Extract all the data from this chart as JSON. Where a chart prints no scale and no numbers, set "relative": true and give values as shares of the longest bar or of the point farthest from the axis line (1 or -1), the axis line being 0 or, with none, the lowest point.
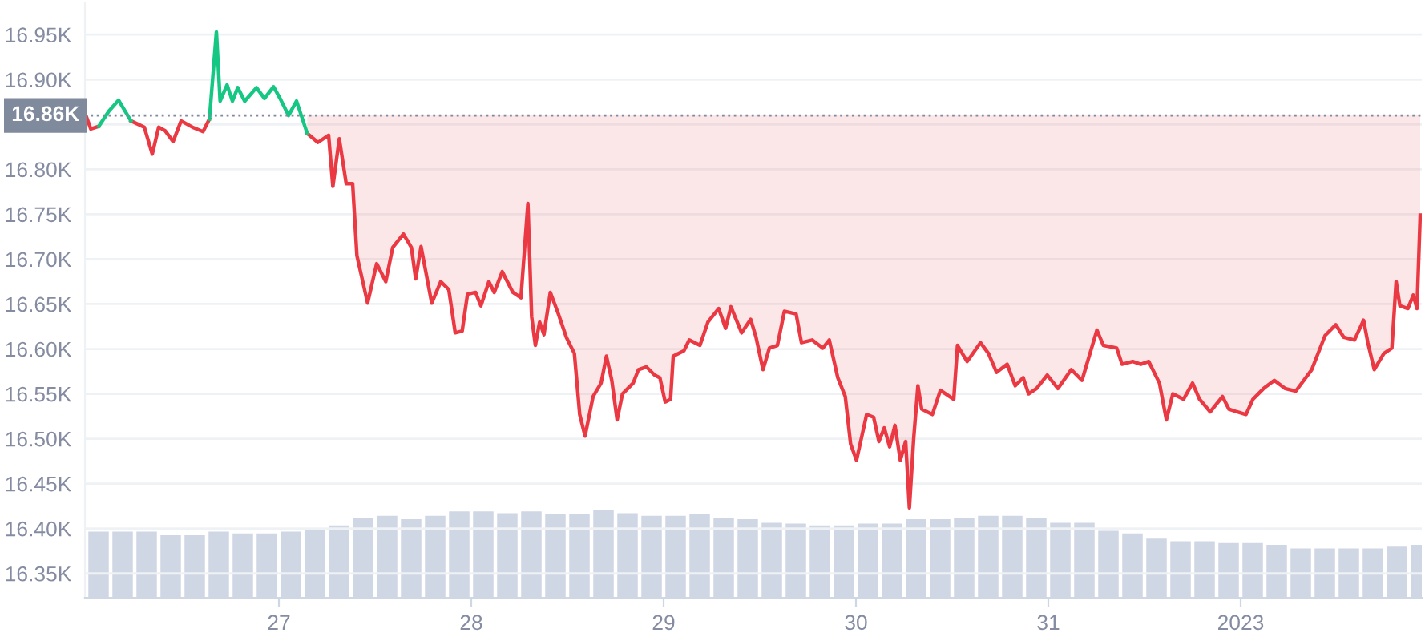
{
  "chart_data": [
    {
      "type": "line",
      "x": [
        "2022-12-26T00:00",
        "2022-12-26T00:32",
        "2022-12-26T01:32",
        "2022-12-26T02:48",
        "2022-12-26T04:00",
        "2022-12-26T04:52",
        "2022-12-26T05:32",
        "2022-12-26T07:12",
        "2022-12-26T08:12",
        "2022-12-26T09:00",
        "2022-12-26T09:48",
        "2022-12-26T10:48",
        "2022-12-26T11:48",
        "2022-12-26T13:12",
        "2022-12-26T14:32",
        "2022-12-26T15:20",
        "2022-12-26T16:12",
        "2022-12-26T16:40",
        "2022-12-26T17:32",
        "2022-12-26T18:12",
        "2022-12-26T18:52",
        "2022-12-26T19:44",
        "2022-12-26T21:12",
        "2022-12-26T22:12",
        "2022-12-26T23:20",
        "2022-12-27T00:12",
        "2022-12-27T01:12",
        "2022-12-27T02:12",
        "2022-12-27T03:32",
        "2022-12-27T04:52",
        "2022-12-27T06:12",
        "2022-12-27T06:44",
        "2022-12-27T07:32",
        "2022-12-27T08:24",
        "2022-12-27T09:12",
        "2022-12-27T09:44",
        "2022-12-27T11:04",
        "2022-12-27T12:12",
        "2022-12-27T13:20",
        "2022-12-27T14:12",
        "2022-12-27T15:32",
        "2022-12-27T16:32",
        "2022-12-27T17:04",
        "2022-12-27T17:44",
        "2022-12-27T19:04",
        "2022-12-27T20:12",
        "2022-12-27T21:12",
        "2022-12-27T22:00",
        "2022-12-27T22:52",
        "2022-12-27T23:32",
        "2022-12-28T00:32",
        "2022-12-28T01:12",
        "2022-12-28T02:12",
        "2022-12-28T02:52",
        "2022-12-28T03:52",
        "2022-12-28T05:12",
        "2022-12-28T06:12",
        "2022-12-28T07:04",
        "2022-12-28T07:32",
        "2022-12-28T08:00",
        "2022-12-28T08:32",
        "2022-12-28T09:04",
        "2022-12-28T09:52",
        "2022-12-28T10:52",
        "2022-12-28T11:52",
        "2022-12-28T12:52",
        "2022-12-28T13:32",
        "2022-12-28T14:12",
        "2022-12-28T15:12",
        "2022-12-28T16:12",
        "2022-12-28T16:52",
        "2022-12-28T17:32",
        "2022-12-28T18:12",
        "2022-12-28T18:52",
        "2022-12-28T20:12",
        "2022-12-28T20:52",
        "2022-12-28T21:52",
        "2022-12-28T22:52",
        "2022-12-28T23:32",
        "2022-12-29T00:12",
        "2022-12-29T00:52",
        "2022-12-29T01:12",
        "2022-12-29T02:32",
        "2022-12-29T03:12",
        "2022-12-29T04:32",
        "2022-12-29T05:32",
        "2022-12-29T06:52",
        "2022-12-29T07:44",
        "2022-12-29T08:24",
        "2022-12-29T09:44",
        "2022-12-29T10:52",
        "2022-12-29T11:32",
        "2022-12-29T12:24",
        "2022-12-29T13:12",
        "2022-12-29T14:12",
        "2022-12-29T15:04",
        "2022-12-29T16:32",
        "2022-12-29T17:12",
        "2022-12-29T18:32",
        "2022-12-29T19:52",
        "2022-12-29T20:40",
        "2022-12-29T21:44",
        "2022-12-29T22:40",
        "2022-12-29T23:20",
        "2022-12-30T00:04",
        "2022-12-30T01:20",
        "2022-12-30T02:12",
        "2022-12-30T02:52",
        "2022-12-30T03:32",
        "2022-12-30T04:12",
        "2022-12-30T04:52",
        "2022-12-30T05:32",
        "2022-12-30T06:12",
        "2022-12-30T06:40",
        "2022-12-30T07:12",
        "2022-12-30T07:44",
        "2022-12-30T08:12",
        "2022-12-30T09:32",
        "2022-12-30T10:32",
        "2022-12-30T12:12",
        "2022-12-30T12:40",
        "2022-12-30T13:52",
        "2022-12-30T15:32",
        "2022-12-30T16:32",
        "2022-12-30T17:32",
        "2022-12-30T18:52",
        "2022-12-30T19:52",
        "2022-12-30T20:52",
        "2022-12-30T21:32",
        "2022-12-30T22:32",
        "2022-12-30T23:52",
        "2022-12-31T01:12",
        "2022-12-31T02:52",
        "2022-12-31T04:12",
        "2022-12-31T05:12",
        "2022-12-31T06:04",
        "2022-12-31T06:52",
        "2022-12-31T08:32",
        "2022-12-31T09:12",
        "2022-12-31T10:32",
        "2022-12-31T11:32",
        "2022-12-31T12:32",
        "2022-12-31T13:52",
        "2022-12-31T14:44",
        "2022-12-31T15:32",
        "2022-12-31T16:52",
        "2022-12-31T18:00",
        "2022-12-31T18:52",
        "2022-12-31T20:12",
        "2022-12-31T21:44",
        "2022-12-31T22:32",
        "2022-12-31T23:32",
        "2023-01-01T00:40",
        "2023-01-01T01:32",
        "2023-01-01T02:52",
        "2023-01-01T04:12",
        "2023-01-01T05:32",
        "2023-01-01T06:52",
        "2023-01-01T08:52",
        "2023-01-01T10:32",
        "2023-01-01T11:52",
        "2023-01-01T12:52",
        "2023-01-01T14:12",
        "2023-01-01T15:20",
        "2023-01-01T15:52",
        "2023-01-01T16:40",
        "2023-01-01T17:52",
        "2023-01-01T18:52",
        "2023-01-01T19:24",
        "2023-01-01T19:52",
        "2023-01-01T20:52",
        "2023-01-01T21:32",
        "2023-01-01T22:00",
        "2023-01-01T22:24"
      ],
      "series": [
        {
          "color": "#ea3943",
          "values": [
            16.858,
            16.845,
            16.848,
            null,
            null,
            null,
            16.854,
            16.847,
            16.817,
            16.847,
            16.843,
            16.831,
            16.854,
            16.847,
            16.842,
            16.856,
            null,
            null,
            null,
            null,
            null,
            null,
            null,
            null,
            null,
            null,
            null,
            null,
            16.84,
            16.83,
            16.838,
            16.781,
            16.834,
            16.784,
            16.784,
            16.704,
            16.651,
            16.695,
            16.675,
            16.713,
            16.728,
            16.713,
            16.678,
            16.714,
            16.651,
            16.675,
            16.666,
            16.618,
            16.62,
            16.661,
            16.663,
            16.648,
            16.675,
            16.663,
            16.686,
            16.663,
            16.657,
            16.762,
            16.636,
            16.604,
            16.63,
            16.616,
            16.663,
            16.639,
            16.613,
            16.595,
            16.527,
            16.503,
            16.547,
            16.562,
            16.592,
            16.565,
            16.521,
            16.55,
            16.562,
            16.577,
            16.58,
            16.571,
            16.568,
            16.541,
            16.544,
            16.592,
            16.598,
            16.61,
            16.604,
            16.63,
            16.645,
            16.623,
            16.647,
            16.618,
            16.633,
            16.613,
            16.577,
            16.601,
            16.604,
            16.642,
            16.639,
            16.607,
            16.61,
            16.601,
            16.61,
            16.568,
            16.547,
            16.494,
            16.476,
            16.527,
            16.524,
            16.497,
            16.512,
            16.491,
            16.515,
            16.476,
            16.497,
            16.423,
            16.5,
            16.559,
            16.533,
            16.527,
            16.554,
            16.544,
            16.604,
            16.586,
            16.607,
            16.595,
            16.574,
            16.583,
            16.559,
            16.568,
            16.55,
            16.556,
            16.571,
            16.556,
            16.577,
            16.565,
            16.595,
            16.621,
            16.604,
            16.601,
            16.583,
            16.586,
            16.583,
            16.586,
            16.562,
            16.521,
            16.55,
            16.544,
            16.562,
            16.544,
            16.53,
            16.547,
            16.533,
            16.53,
            16.527,
            16.544,
            16.556,
            16.565,
            16.556,
            16.553,
            16.577,
            16.615,
            16.627,
            16.613,
            16.61,
            16.632,
            16.607,
            16.577,
            16.595,
            16.601,
            16.675,
            16.648,
            16.645,
            16.66,
            16.645,
            16.749
          ]
        },
        {
          "color": "#16c784",
          "x": [
            "2022-12-26T01:32",
            "2022-12-26T02:48",
            "2022-12-26T04:00",
            "2022-12-26T04:52",
            "2022-12-26T05:32",
            null,
            "2022-12-26T15:20",
            "2022-12-26T16:12",
            "2022-12-26T16:40",
            "2022-12-26T17:32",
            "2022-12-26T18:12",
            "2022-12-26T18:52",
            "2022-12-26T19:44",
            "2022-12-26T21:12",
            "2022-12-26T22:12",
            "2022-12-26T23:20",
            "2022-12-27T00:12",
            "2022-12-27T01:12",
            "2022-12-27T02:12",
            "2022-12-27T03:32"
          ],
          "values": [
            16.848,
            16.865,
            16.877,
            16.864,
            16.854,
            null,
            16.856,
            16.953,
            16.876,
            16.894,
            16.876,
            16.891,
            16.876,
            16.891,
            16.879,
            16.892,
            16.878,
            16.86,
            16.876,
            16.84
          ]
        }
      ],
      "xlim": [
        "2022-12-25T23:48",
        "2023-01-01T22:36"
      ],
      "xticks": [
        {
          "value": "2022-12-27",
          "label": "27"
        },
        {
          "value": "2022-12-28",
          "label": "28"
        },
        {
          "value": "2022-12-29",
          "label": "29"
        },
        {
          "value": "2022-12-30",
          "label": "30"
        },
        {
          "value": "2022-12-31",
          "label": "31"
        },
        {
          "value": "2023-01-01",
          "label": "2023"
        }
      ],
      "ylim": [
        16.323,
        16.985
      ],
      "yticks": [
        {
          "value": 16.35,
          "label": "16.35K"
        },
        {
          "value": 16.4,
          "label": "16.40K"
        },
        {
          "value": 16.45,
          "label": "16.45K"
        },
        {
          "value": 16.5,
          "label": "16.50K"
        },
        {
          "value": 16.55,
          "label": "16.55K"
        },
        {
          "value": 16.6,
          "label": "16.60K"
        },
        {
          "value": 16.65,
          "label": "16.65K"
        },
        {
          "value": 16.7,
          "label": "16.70K"
        },
        {
          "value": 16.75,
          "label": "16.75K"
        },
        {
          "value": 16.8,
          "label": "16.80K"
        },
        {
          "value": 16.85,
          "label": null
        },
        {
          "value": 16.9,
          "label": "16.90K"
        },
        {
          "value": 16.95,
          "label": "16.95K"
        }
      ],
      "ref_lines": [
        {
          "axis": "y",
          "value": 16.86,
          "label": "16.86K",
          "color": "#808a9d",
          "line_style": "dotted"
        }
      ],
      "grid": "y"
    },
    {
      "type": "bar",
      "relative": true,
      "tick_labels": false,
      "xlim": [
        "2022-12-25T23:48",
        "2023-01-01T22:36"
      ],
      "series": [
        {
          "color": "#cfd6e4",
          "x": [
            "2022-12-26T01:30",
            "2022-12-26T04:30",
            "2022-12-26T07:30",
            "2022-12-26T10:30",
            "2022-12-26T13:30",
            "2022-12-26T16:30",
            "2022-12-26T19:30",
            "2022-12-26T22:30",
            "2022-12-27T01:30",
            "2022-12-27T04:30",
            "2022-12-27T07:30",
            "2022-12-27T10:30",
            "2022-12-27T13:30",
            "2022-12-27T16:30",
            "2022-12-27T19:30",
            "2022-12-27T22:30",
            "2022-12-28T01:30",
            "2022-12-28T04:30",
            "2022-12-28T07:30",
            "2022-12-28T10:30",
            "2022-12-28T13:30",
            "2022-12-28T16:30",
            "2022-12-28T19:30",
            "2022-12-28T22:30",
            "2022-12-29T01:30",
            "2022-12-29T04:30",
            "2022-12-29T07:30",
            "2022-12-29T10:30",
            "2022-12-29T13:30",
            "2022-12-29T16:30",
            "2022-12-29T19:30",
            "2022-12-29T22:30",
            "2022-12-30T01:30",
            "2022-12-30T04:30",
            "2022-12-30T07:30",
            "2022-12-30T10:30",
            "2022-12-30T13:30",
            "2022-12-30T16:30",
            "2022-12-30T19:30",
            "2022-12-30T22:30",
            "2022-12-31T01:30",
            "2022-12-31T04:30",
            "2022-12-31T07:30",
            "2022-12-31T10:30",
            "2022-12-31T13:30",
            "2022-12-31T16:30",
            "2022-12-31T19:30",
            "2022-12-31T22:30",
            "2023-01-01T01:30",
            "2023-01-01T04:30",
            "2023-01-01T07:30",
            "2023-01-01T10:30",
            "2023-01-01T13:30",
            "2023-01-01T16:30",
            "2023-01-01T19:30",
            "2023-01-01T22:30"
          ],
          "values": [
            0.75,
            0.75,
            0.75,
            0.71,
            0.71,
            0.75,
            0.73,
            0.73,
            0.75,
            0.78,
            0.82,
            0.91,
            0.93,
            0.89,
            0.93,
            0.98,
            0.98,
            0.96,
            0.98,
            0.95,
            0.95,
            1,
            0.96,
            0.93,
            0.93,
            0.95,
            0.91,
            0.89,
            0.85,
            0.84,
            0.82,
            0.82,
            0.84,
            0.84,
            0.89,
            0.89,
            0.91,
            0.93,
            0.93,
            0.91,
            0.85,
            0.85,
            0.76,
            0.73,
            0.67,
            0.64,
            0.64,
            0.62,
            0.62,
            0.6,
            0.56,
            0.56,
            0.56,
            0.56,
            0.58,
            0.6
          ]
        }
      ]
    }
  ]
}
